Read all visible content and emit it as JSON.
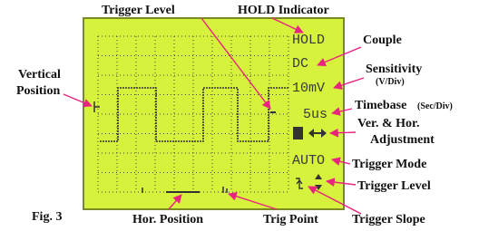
{
  "labels": {
    "trigger_level_top": "Trigger Level",
    "hold_indicator": "HOLD Indicator",
    "couple": "Couple",
    "sensitivity": "Sensitivity",
    "sensitivity_unit": "(V/Div)",
    "timebase": "Timebase",
    "timebase_unit": "(Sec/Div)",
    "adjustment_1": "Ver. & Hor.",
    "adjustment_2": "Adjustment",
    "trigger_mode": "Trigger Mode",
    "trigger_level_right": "Trigger Level",
    "trigger_slope": "Trigger Slope",
    "trig_point": "Trig Point",
    "hor_position": "Hor. Position",
    "figure": "Fig. 3",
    "vertical_1": "Vertical",
    "vertical_2": "Position"
  },
  "screen": {
    "hold": "HOLD",
    "couple": "DC",
    "sensitivity": "10mV",
    "timebase": "5us",
    "mode": "AUTO"
  }
}
